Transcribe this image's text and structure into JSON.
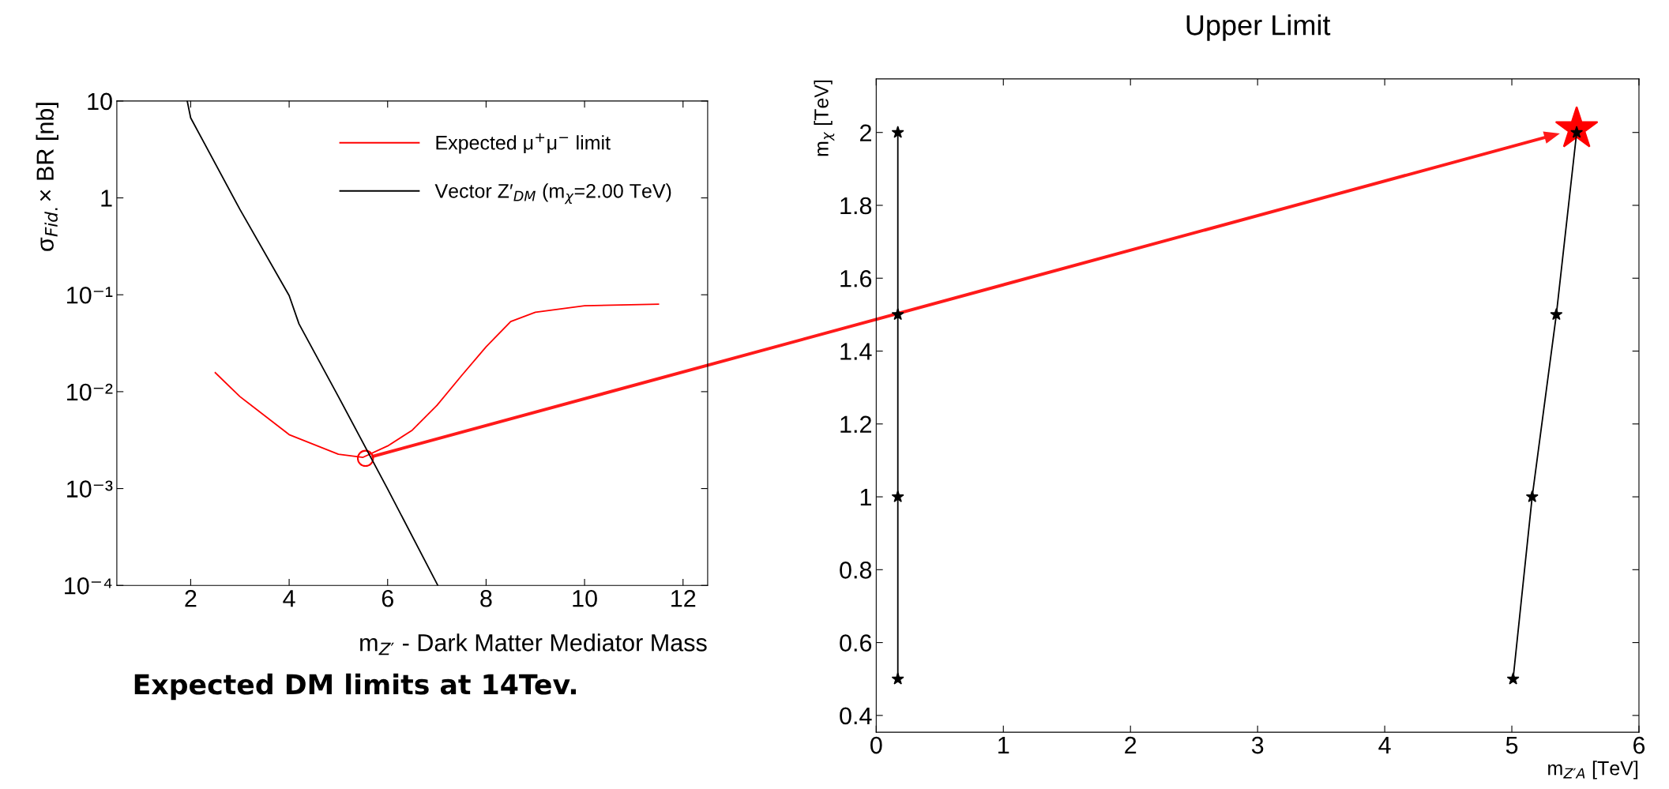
{
  "chart_data": [
    {
      "type": "line",
      "ylabel": "σ$_{Fid.}$× BR [nb]",
      "xlabel": "m$_{Z′}$ - Dark Matter Mediator Mass",
      "log": "y",
      "xlim": [
        0.5,
        12.5
      ],
      "ylim": [
        0.0001,
        10
      ],
      "xticks": [
        2,
        4,
        6,
        8,
        10,
        12
      ],
      "yticks": [
        {
          "value": 0.0001,
          "label": "10⁻⁴"
        },
        {
          "value": 0.001,
          "label": "10⁻³"
        },
        {
          "value": 0.01,
          "label": "10⁻²"
        },
        {
          "value": 0.1,
          "label": "10⁻¹"
        },
        1,
        10
      ],
      "legend": "top right",
      "grid": false,
      "annotations": [
        "Expected DM limits at 14Tev."
      ],
      "series": [
        {
          "name": "Expected μ$^{+}$μ$^{−}$ limit",
          "color": "#ff0000",
          "x": [
            2.5,
            3,
            4,
            5,
            5.5,
            6,
            6.5,
            7,
            7.5,
            8,
            8.5,
            9,
            10,
            11.5
          ],
          "values": [
            0.0157,
            0.0089,
            0.0036,
            0.00226,
            0.0021,
            0.00275,
            0.004,
            0.0072,
            0.0146,
            0.029,
            0.053,
            0.066,
            0.077,
            0.08
          ]
        },
        {
          "name": "Vector Z′$_{DM}$ (m$_{χ}$=2.00 TeV)",
          "color": "#000000",
          "x": [
            1.93,
            2.0,
            3,
            4,
            4.2,
            5,
            6,
            7.02
          ],
          "values": [
            10,
            6.7,
            0.76,
            0.098,
            0.05,
            0.0089,
            0.00099,
            0.0001
          ]
        },
        {
          "type": "scatter",
          "marker": "circle",
          "color": "#ff0000",
          "x": [
            5.55
          ],
          "values": [
            0.00205
          ]
        }
      ]
    },
    {
      "type": "line",
      "title": "Upper Limit",
      "xlabel": "m$_{Z′A}$ [TeV]",
      "ylabel": "m$_{χ}$ [TeV]",
      "xlim": [
        0,
        6
      ],
      "ylim": [
        0.354,
        2.147
      ],
      "xticks": [
        0,
        1,
        2,
        3,
        4,
        5,
        6
      ],
      "yticks": [
        0.4,
        0.6,
        0.8,
        1,
        1.2,
        1.4,
        1.6,
        1.8,
        2
      ],
      "grid": false,
      "series": [
        {
          "color": "#000000",
          "marker": "star",
          "x": [
            0.17,
            0.17,
            0.17,
            0.17
          ],
          "values": [
            0.5,
            1,
            1.5,
            2
          ]
        },
        {
          "color": "#000000",
          "marker": "star",
          "x": [
            5.01,
            5.16,
            5.35,
            5.51
          ],
          "values": [
            0.5,
            1,
            1.5,
            2
          ]
        },
        {
          "type": "scatter",
          "marker": "star",
          "color": "#ff0000",
          "x": [
            5.51
          ],
          "values": [
            2.01
          ]
        }
      ]
    }
  ]
}
